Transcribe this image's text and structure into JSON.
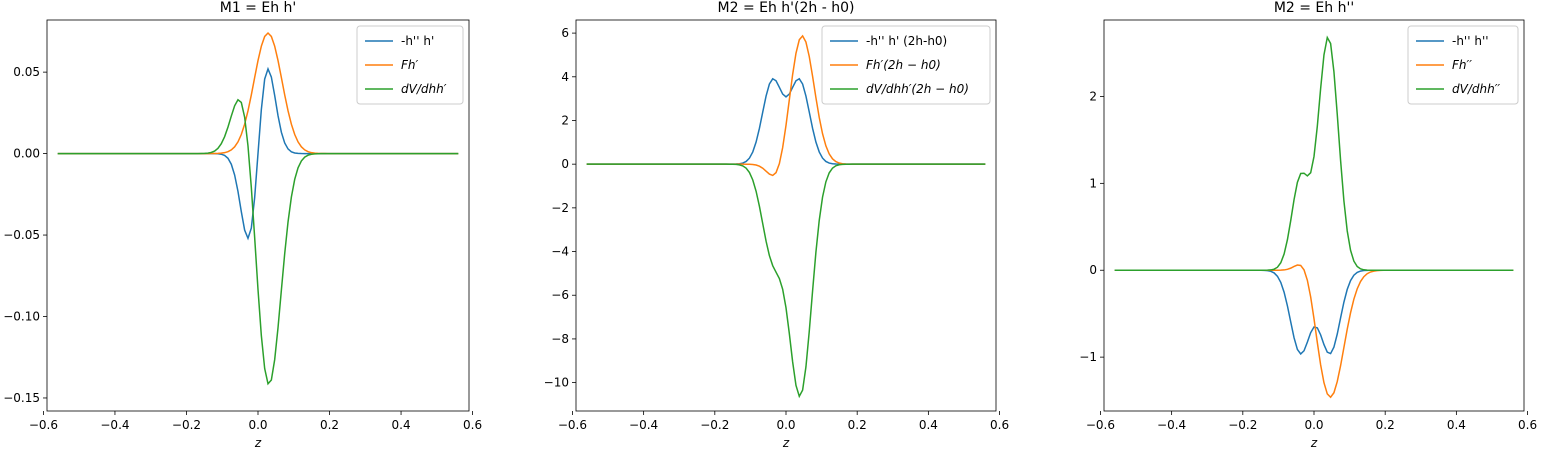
{
  "chart_data": [
    {
      "type": "line",
      "title": "M1 = Eh h'",
      "xlabel": "z",
      "ylabel": "",
      "xlim": [
        -0.59,
        0.59
      ],
      "ylim": [
        -0.158,
        0.082
      ],
      "xticks": [
        -0.6,
        -0.4,
        -0.2,
        0.0,
        0.2,
        0.4,
        0.6
      ],
      "xtick_labels": [
        "−0.6",
        "−0.4",
        "−0.2",
        "0.0",
        "0.2",
        "0.4",
        "0.6"
      ],
      "yticks": [
        -0.15,
        -0.1,
        -0.05,
        0.0,
        0.05
      ],
      "ytick_labels": [
        "−0.15",
        "−0.10",
        "−0.05",
        "0.00",
        "0.05"
      ],
      "legend_position": "top-right",
      "series": [
        {
          "name": "-h'' h'",
          "color": "#1f77b4",
          "shape": "odd",
          "amp": 0.052,
          "peak": 0.028
        },
        {
          "name": "Fh′",
          "color": "#ff7f0e",
          "shape": "gauss",
          "amp": 0.074,
          "center": 0.028,
          "width": 0.055
        },
        {
          "name": "dV/dhh′",
          "color": "#2ca02c",
          "shape": "dual",
          "a1": 0.049,
          "c1": -0.038,
          "w1": 0.045,
          "a2": -0.147,
          "c2": 0.028,
          "w2": 0.05
        }
      ]
    },
    {
      "type": "line",
      "title": "M2 = Eh h'(2h - h0)",
      "xlabel": "z",
      "ylabel": "",
      "xlim": [
        -0.59,
        0.59
      ],
      "ylim": [
        -11.3,
        6.6
      ],
      "xticks": [
        -0.6,
        -0.4,
        -0.2,
        0.0,
        0.2,
        0.4,
        0.6
      ],
      "xtick_labels": [
        "−0.6",
        "−0.4",
        "−0.2",
        "0.0",
        "0.2",
        "0.4",
        "0.6"
      ],
      "yticks": [
        -10,
        -8,
        -6,
        -4,
        -2,
        0,
        2,
        4,
        6
      ],
      "ytick_labels": [
        "−10",
        "−8",
        "−6",
        "−4",
        "−2",
        "0",
        "2",
        "4",
        "6"
      ],
      "legend_position": "top-right",
      "series": [
        {
          "name": "-h'' h' (2h-h0)",
          "color": "#1f77b4",
          "shape": "bump",
          "a1": 3.8,
          "c1": -0.038,
          "w1": 0.04,
          "a2": 3.8,
          "c2": 0.038,
          "w2": 0.04
        },
        {
          "name": "Fh′(2h − h0)",
          "color": "#ff7f0e",
          "shape": "dual",
          "a1": -1.0,
          "c1": -0.022,
          "w1": 0.035,
          "a2": 5.9,
          "c2": 0.045,
          "w2": 0.048
        },
        {
          "name": "dV/dhh′(2h − h0)",
          "color": "#2ca02c",
          "shape": "dual",
          "a1": -4.1,
          "c1": -0.038,
          "w1": 0.042,
          "a2": -10.5,
          "c2": 0.04,
          "w2": 0.045
        }
      ]
    },
    {
      "type": "line",
      "title": "M2 = Eh h''",
      "xlabel": "z",
      "ylabel": "",
      "xlim": [
        -0.59,
        0.59
      ],
      "ylim": [
        -1.62,
        2.88
      ],
      "xticks": [
        -0.6,
        -0.4,
        -0.2,
        0.0,
        0.2,
        0.4,
        0.6
      ],
      "xtick_labels": [
        "−0.6",
        "−0.4",
        "−0.2",
        "0.0",
        "0.2",
        "0.4",
        "0.6"
      ],
      "yticks": [
        -1,
        0,
        1,
        2
      ],
      "ytick_labels": [
        "−1",
        "0",
        "1",
        "2"
      ],
      "legend_position": "top-right",
      "series": [
        {
          "name": "-h'' h''",
          "color": "#1f77b4",
          "shape": "bump",
          "a1": -0.95,
          "c1": -0.038,
          "w1": 0.04,
          "a2": -0.95,
          "c2": 0.045,
          "w2": 0.04
        },
        {
          "name": "Fh′′",
          "color": "#ff7f0e",
          "shape": "dual",
          "a1": 0.27,
          "c1": -0.02,
          "w1": 0.035,
          "a2": -1.47,
          "c2": 0.045,
          "w2": 0.055
        },
        {
          "name": "dV/dhh′′",
          "color": "#2ca02c",
          "shape": "dual",
          "a1": 1.05,
          "c1": -0.038,
          "w1": 0.035,
          "a2": 2.68,
          "c2": 0.04,
          "w2": 0.04
        }
      ]
    }
  ]
}
